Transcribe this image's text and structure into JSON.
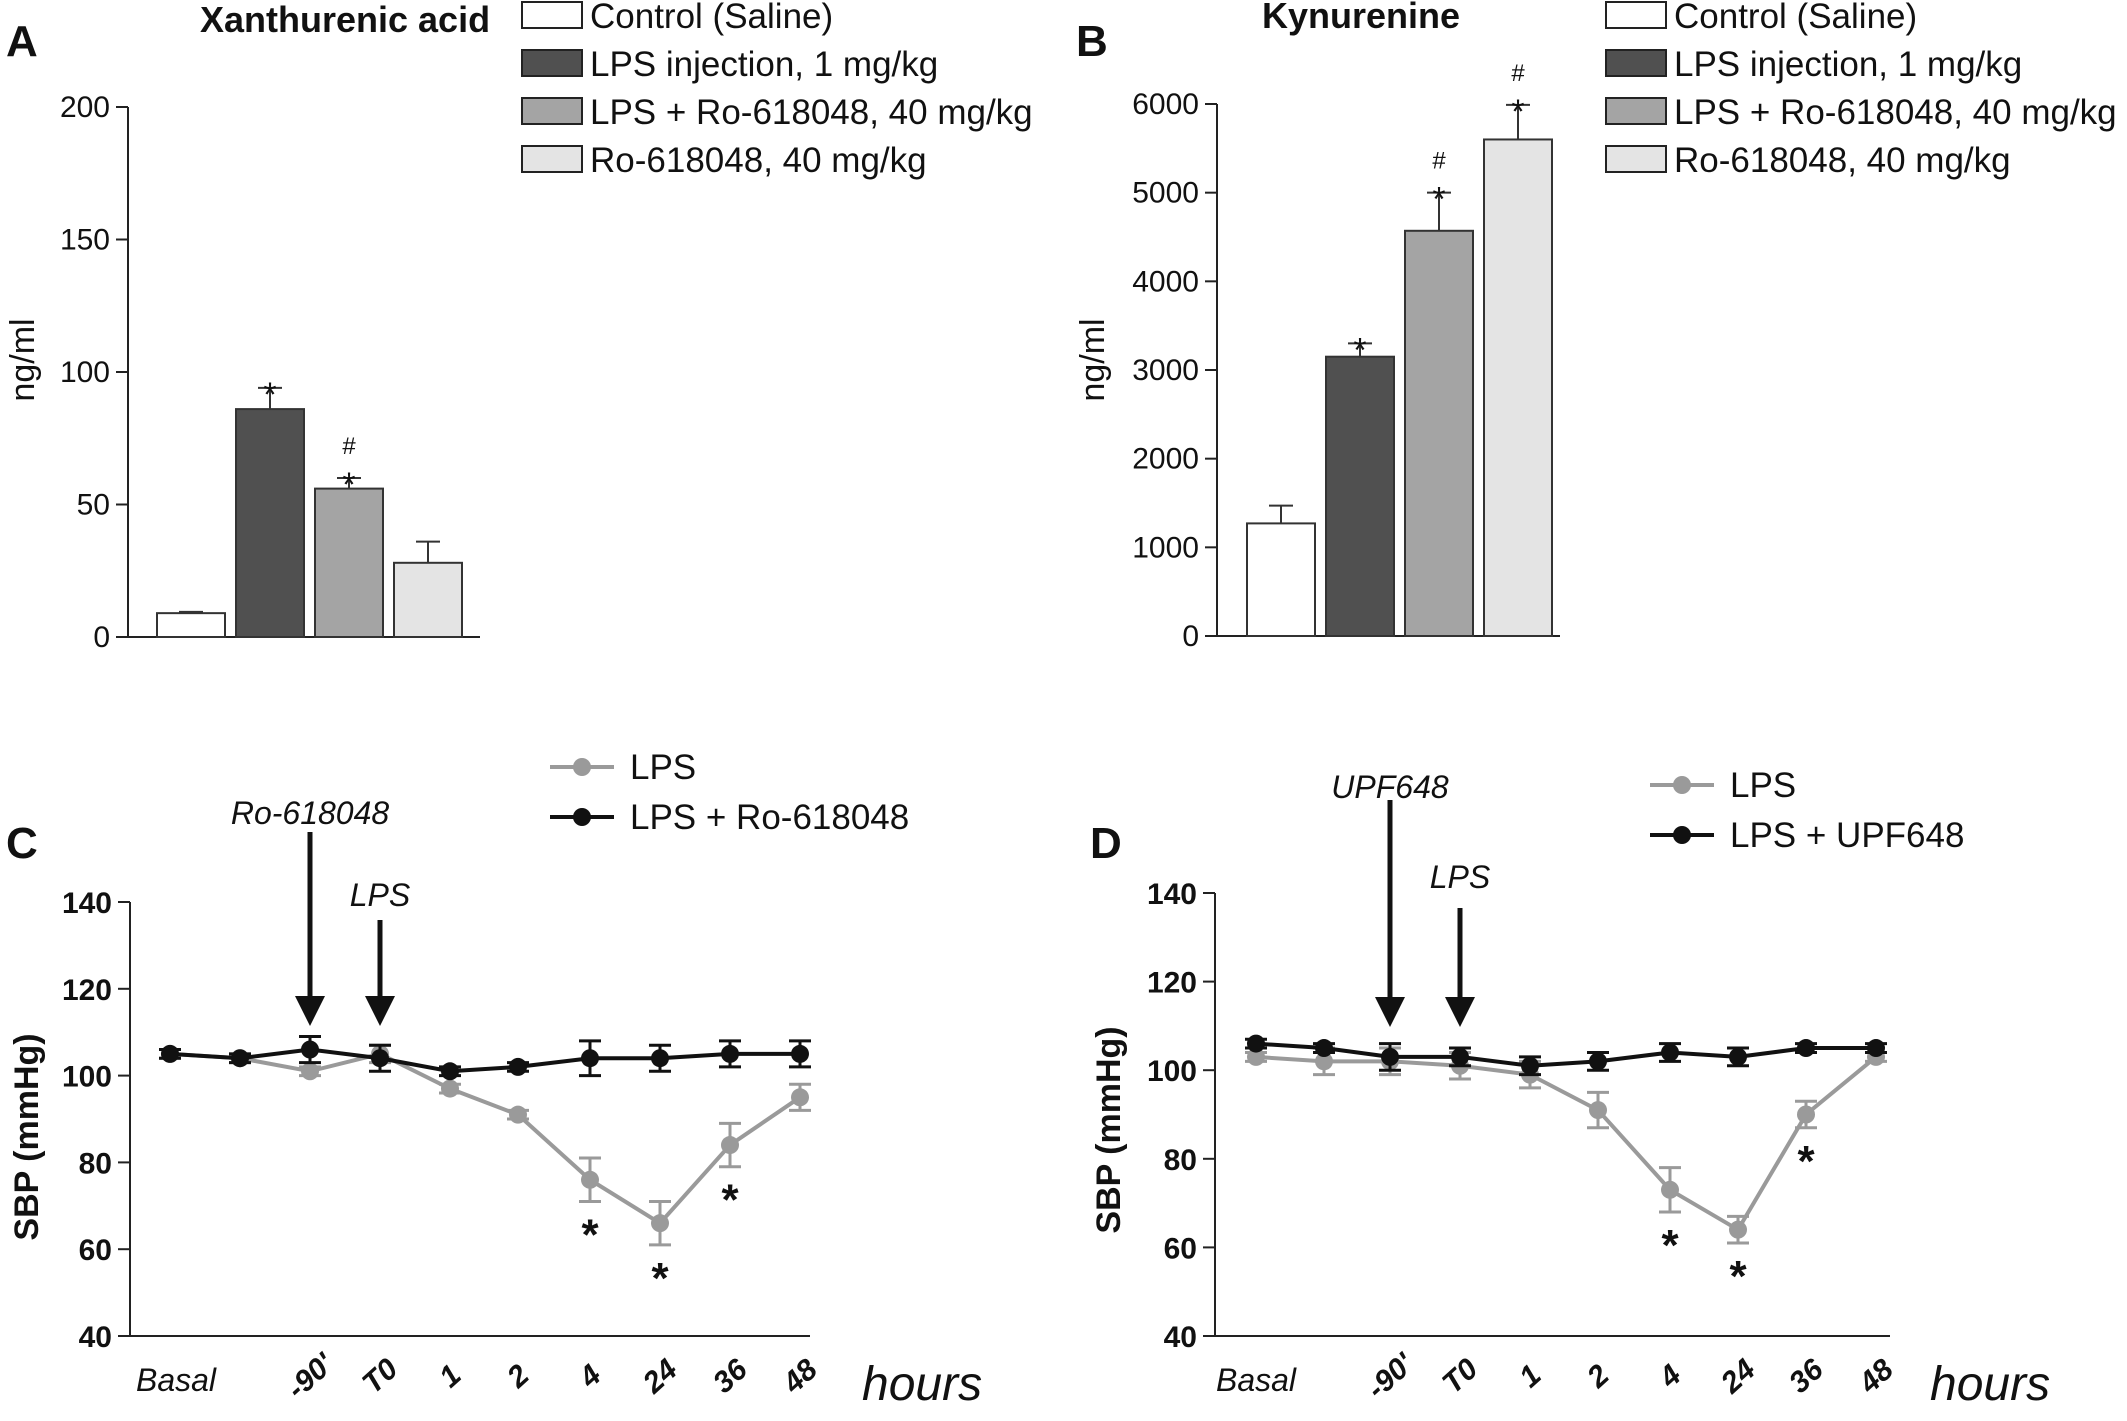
{
  "chart_data": [
    {
      "panel": "A",
      "type": "bar",
      "title": "Xanthurenic acid",
      "ylabel": "ng/ml",
      "ylim": [
        0,
        200
      ],
      "yticks": [
        "0",
        "50",
        "100",
        "150",
        "200"
      ],
      "categories": [
        "Control (Saline)",
        "LPS injection, 1 mg/kg",
        "LPS + Ro-618048, 40 mg/kg",
        "Ro-618048, 40 mg/kg"
      ],
      "values": [
        9,
        86,
        56,
        28
      ],
      "errors": [
        0.5,
        8,
        4,
        8
      ],
      "colors": [
        "#ffffff",
        "#505050",
        "#a4a4a4",
        "#e4e4e4"
      ],
      "annotations": [
        {
          "bar": 1,
          "marks": [
            "*"
          ]
        },
        {
          "bar": 2,
          "marks": [
            "#",
            "*"
          ]
        }
      ]
    },
    {
      "panel": "B",
      "type": "bar",
      "title": "Kynurenine",
      "ylabel": "ng/ml",
      "ylim": [
        0,
        6000
      ],
      "yticks": [
        "0",
        "1000",
        "2000",
        "3000",
        "4000",
        "5000",
        "6000"
      ],
      "categories": [
        "Control (Saline)",
        "LPS injection, 1 mg/kg",
        "LPS + Ro-618048, 40 mg/kg",
        "Ro-618048, 40 mg/kg"
      ],
      "values": [
        1270,
        3150,
        4570,
        5600
      ],
      "errors": [
        200,
        150,
        430,
        390
      ],
      "colors": [
        "#ffffff",
        "#505050",
        "#a4a4a4",
        "#e4e4e4"
      ],
      "annotations": [
        {
          "bar": 1,
          "marks": [
            "*"
          ]
        },
        {
          "bar": 2,
          "marks": [
            "#",
            "*"
          ]
        },
        {
          "bar": 3,
          "marks": [
            "#",
            "*"
          ]
        }
      ]
    },
    {
      "panel": "C",
      "type": "line",
      "ylabel": "SBP (mmHg)",
      "xlabel": "hours",
      "ylim": [
        40,
        140
      ],
      "yticks": [
        "40",
        "60",
        "80",
        "100",
        "120",
        "140"
      ],
      "x": [
        "Basal",
        "",
        "-90'",
        "T0",
        "1",
        "2",
        "4",
        "24",
        "36",
        "48"
      ],
      "arrows": [
        {
          "label": "Ro-618048",
          "at": 2
        },
        {
          "label": "LPS",
          "at": 3
        }
      ],
      "series": [
        {
          "name": "LPS",
          "color": "#9a9a9a",
          "values": [
            105,
            104,
            101,
            105,
            97,
            91,
            76,
            66,
            84,
            95
          ],
          "errors": [
            1,
            1,
            1,
            2,
            1,
            1,
            5,
            5,
            5,
            3
          ]
        },
        {
          "name": "LPS + Ro-618048",
          "color": "#111111",
          "values": [
            105,
            104,
            106,
            104,
            101,
            102,
            104,
            104,
            105,
            105
          ],
          "errors": [
            1,
            1,
            3,
            3,
            1,
            1,
            4,
            3,
            3,
            3
          ]
        }
      ],
      "significance": [
        {
          "at": 6,
          "mark": "*"
        },
        {
          "at": 7,
          "mark": "*"
        },
        {
          "at": 8,
          "mark": "*"
        }
      ]
    },
    {
      "panel": "D",
      "type": "line",
      "ylabel": "SBP (mmHg)",
      "xlabel": "hours",
      "ylim": [
        40,
        140
      ],
      "yticks": [
        "40",
        "60",
        "80",
        "100",
        "120",
        "140"
      ],
      "x": [
        "Basal",
        "",
        "-90'",
        "T0",
        "1",
        "2",
        "4",
        "24",
        "36",
        "48"
      ],
      "arrows": [
        {
          "label": "UPF648",
          "at": 2
        },
        {
          "label": "LPS",
          "at": 3
        }
      ],
      "series": [
        {
          "name": "LPS",
          "color": "#9a9a9a",
          "values": [
            103,
            102,
            102,
            101,
            99,
            91,
            73,
            64,
            90,
            103
          ],
          "errors": [
            1,
            3,
            3,
            3,
            3,
            4,
            5,
            3,
            3,
            1
          ]
        },
        {
          "name": "LPS + UPF648",
          "color": "#111111",
          "values": [
            106,
            105,
            103,
            103,
            101,
            102,
            104,
            103,
            105,
            105
          ],
          "errors": [
            1,
            1,
            3,
            2,
            2,
            2,
            2,
            2,
            1,
            1
          ]
        }
      ],
      "significance": [
        {
          "at": 6,
          "mark": "*"
        },
        {
          "at": 7,
          "mark": "*"
        },
        {
          "at": 8,
          "mark": "*"
        }
      ]
    }
  ]
}
